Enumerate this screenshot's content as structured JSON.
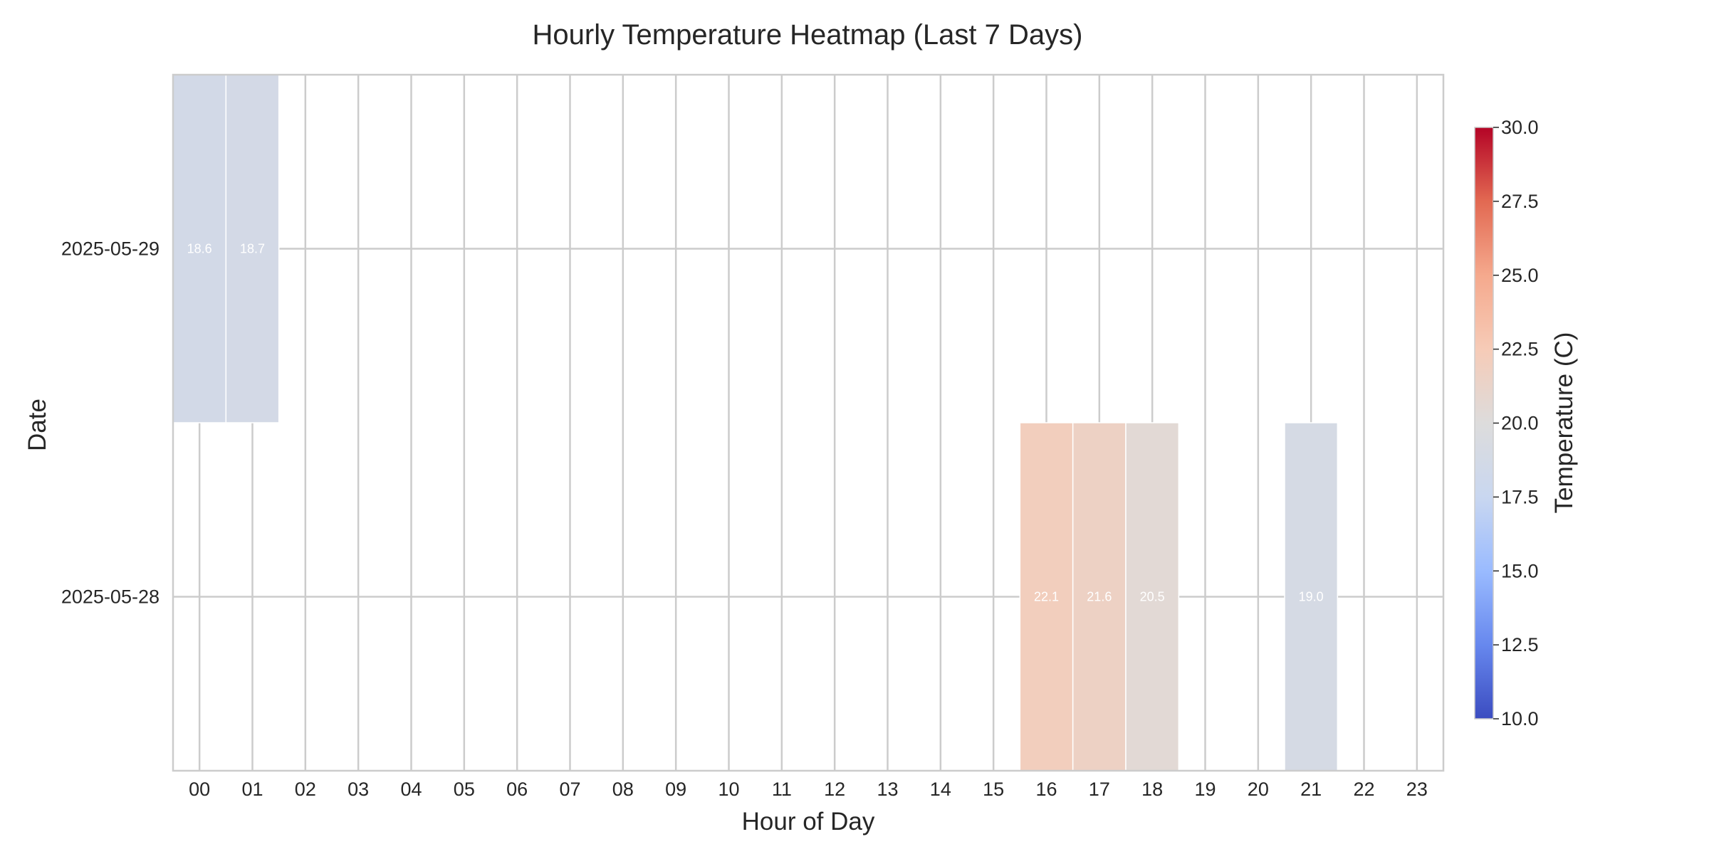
{
  "chart_data": {
    "type": "heatmap",
    "title": "Hourly Temperature Heatmap (Last 7 Days)",
    "xlabel": "Hour of Day",
    "ylabel": "Date",
    "x_categories": [
      "00",
      "01",
      "02",
      "03",
      "04",
      "05",
      "06",
      "07",
      "08",
      "09",
      "10",
      "11",
      "12",
      "13",
      "14",
      "15",
      "16",
      "17",
      "18",
      "19",
      "20",
      "21",
      "22",
      "23"
    ],
    "y_categories": [
      "2025-05-29",
      "2025-05-28"
    ],
    "cells": [
      {
        "date": "2025-05-29",
        "hour": "00",
        "value": 18.6,
        "label": "18.6"
      },
      {
        "date": "2025-05-29",
        "hour": "01",
        "value": 18.7,
        "label": "18.7"
      },
      {
        "date": "2025-05-28",
        "hour": "16",
        "value": 22.1,
        "label": "22.1"
      },
      {
        "date": "2025-05-28",
        "hour": "17",
        "value": 21.6,
        "label": "21.6"
      },
      {
        "date": "2025-05-28",
        "hour": "18",
        "value": 20.5,
        "label": "20.5"
      },
      {
        "date": "2025-05-28",
        "hour": "21",
        "value": 19.0,
        "label": "19.0"
      }
    ],
    "colorbar": {
      "label": "Temperature (C)",
      "vmin": 10.0,
      "vmax": 30.0,
      "ticks": [
        "10.0",
        "12.5",
        "15.0",
        "17.5",
        "20.0",
        "22.5",
        "25.0",
        "27.5",
        "30.0"
      ],
      "colormap": "coolwarm",
      "stops": [
        "#3b4cc0",
        "#6788ee",
        "#9abbff",
        "#c9d7f0",
        "#dddcdc",
        "#f6cbb7",
        "#f5a98d",
        "#e26952",
        "#b40426"
      ]
    },
    "grid": true
  }
}
